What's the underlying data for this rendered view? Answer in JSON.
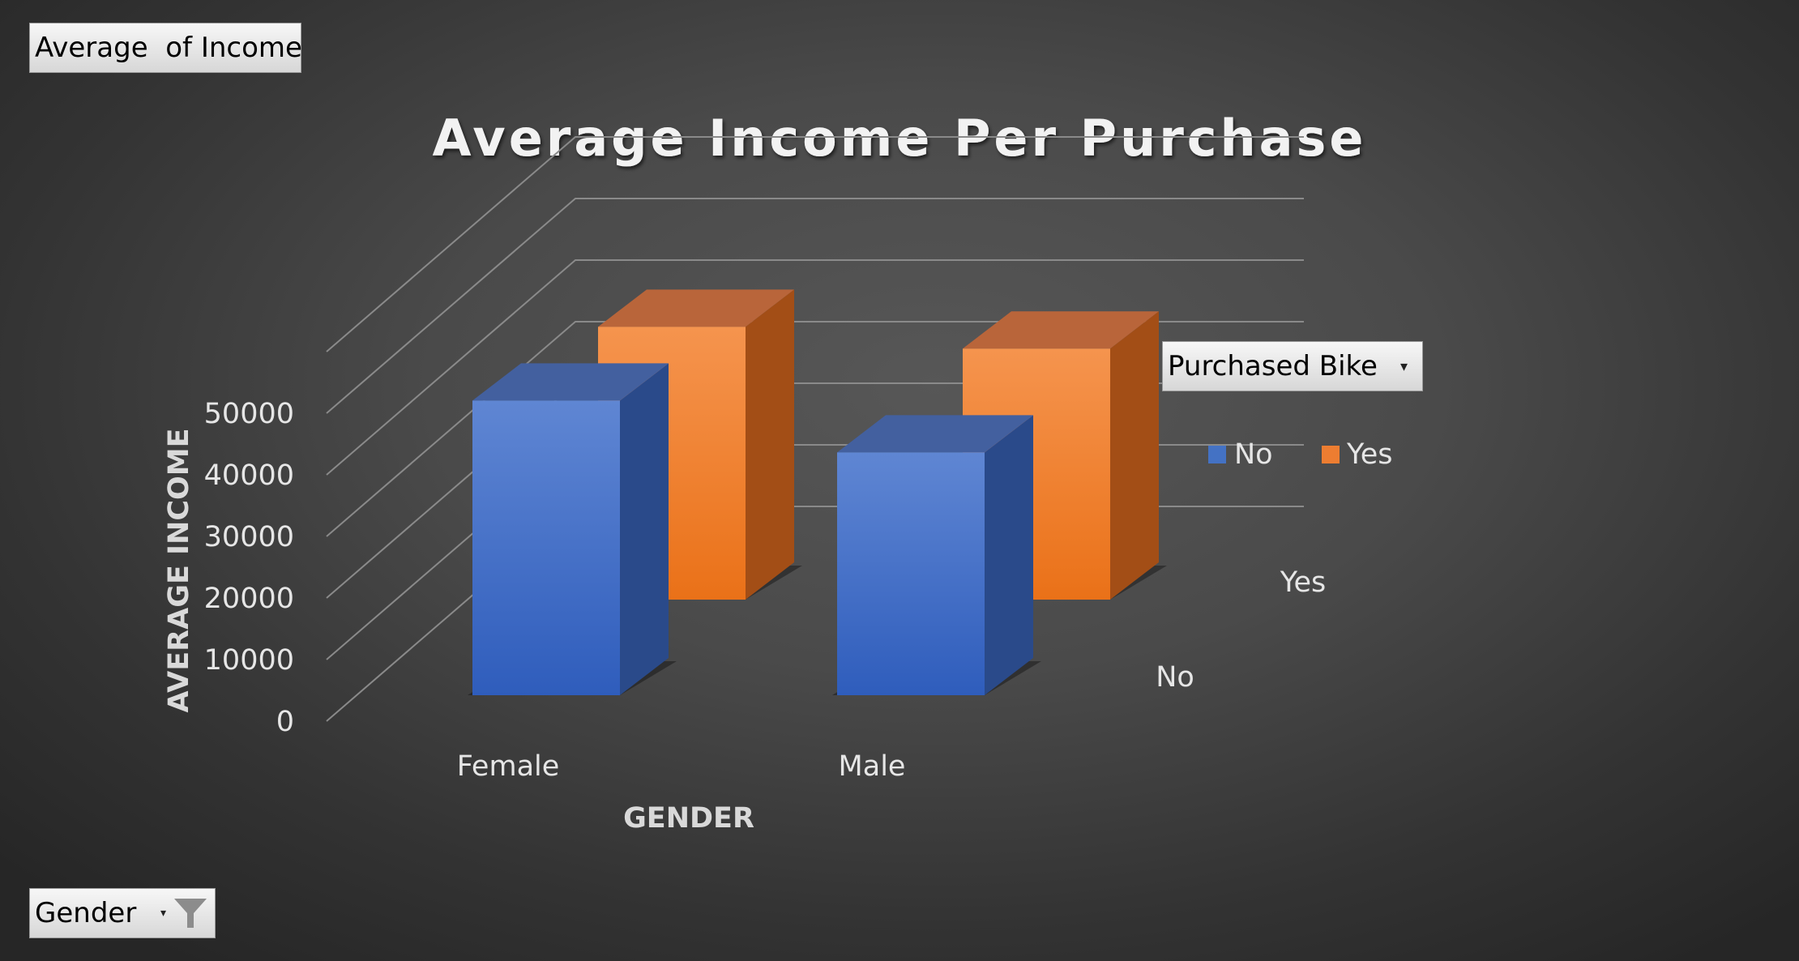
{
  "pivot_buttons": {
    "value_field": "Average  of Income",
    "legend_field": "Purchased Bike",
    "axis_field": "Gender"
  },
  "colors": {
    "no": "#4472c4",
    "yes": "#ed7d31",
    "gridline": "#8a8a8a",
    "text": "#e6e6e6"
  },
  "icons": {
    "dropdown": "chevron-down-icon",
    "filter": "funnel-icon"
  },
  "chart_data": {
    "type": "bar",
    "variant": "3d-column",
    "title": "Average Income Per Purchase",
    "xlabel": "GENDER",
    "ylabel": "AVERAGE INCOME",
    "categories": [
      "Female",
      "Male"
    ],
    "depth_labels": [
      "No",
      "Yes"
    ],
    "series": [
      {
        "name": "No",
        "values": [
          54000,
          44500
        ]
      },
      {
        "name": "Yes",
        "values": [
          50000,
          46000
        ]
      }
    ],
    "ylim": [
      0,
      50000
    ],
    "yticks": [
      "0",
      "10000",
      "20000",
      "30000",
      "40000",
      "50000"
    ],
    "grid": true,
    "legend": [
      "No",
      "Yes"
    ],
    "legend_position": "right"
  }
}
